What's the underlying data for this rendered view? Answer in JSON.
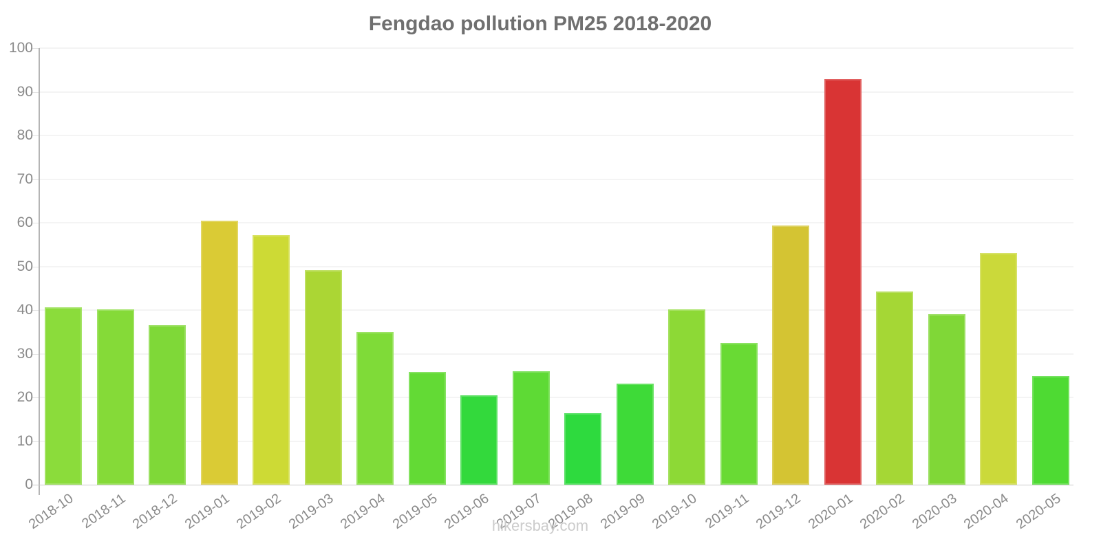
{
  "title": "Fengdao pollution PM25 2018-2020",
  "footer": "hikersbay.com",
  "colors": {
    "background": "#ffffff",
    "title_text": "#6f6f6f",
    "axis_label_text": "#8a8a8a",
    "y_axis_line": "#b5b5b5",
    "x_axis_line": "#c9c9c9",
    "gridline": "#f4f4f4",
    "tick": "#e3e3e3",
    "footer_text": "#cccccc"
  },
  "chart_data": {
    "type": "bar",
    "title": "Fengdao pollution PM25 2018-2020",
    "xlabel": "",
    "ylabel": "",
    "ylim": [
      0,
      100
    ],
    "y_ticks": [
      0,
      10,
      20,
      30,
      40,
      50,
      60,
      70,
      80,
      90,
      100
    ],
    "grid": true,
    "legend": "none",
    "categories": [
      "2018-10",
      "2018-11",
      "2018-12",
      "2019-01",
      "2019-02",
      "2019-03",
      "2019-04",
      "2019-05",
      "2019-06",
      "2019-07",
      "2019-08",
      "2019-09",
      "2019-10",
      "2019-11",
      "2019-12",
      "2020-01",
      "2020-02",
      "2020-03",
      "2020-04",
      "2020-05"
    ],
    "values": [
      40.6,
      40.2,
      36.5,
      60.4,
      57.1,
      49.2,
      34.9,
      25.8,
      20.5,
      26.0,
      16.3,
      23.2,
      40.1,
      32.4,
      59.3,
      92.9,
      44.2,
      39.1,
      53.1,
      24.9
    ],
    "bar_colors": [
      "#8bdc3b",
      "#85da38",
      "#7fd838",
      "#dacb35",
      "#cdda35",
      "#abd634",
      "#7fdb38",
      "#63da35",
      "#33d93c",
      "#5eda35",
      "#2eda3e",
      "#3eda38",
      "#8dd936",
      "#69da34",
      "#d4c433",
      "#d93434",
      "#a5d735",
      "#80d737",
      "#cbd93a",
      "#4eda33"
    ]
  }
}
